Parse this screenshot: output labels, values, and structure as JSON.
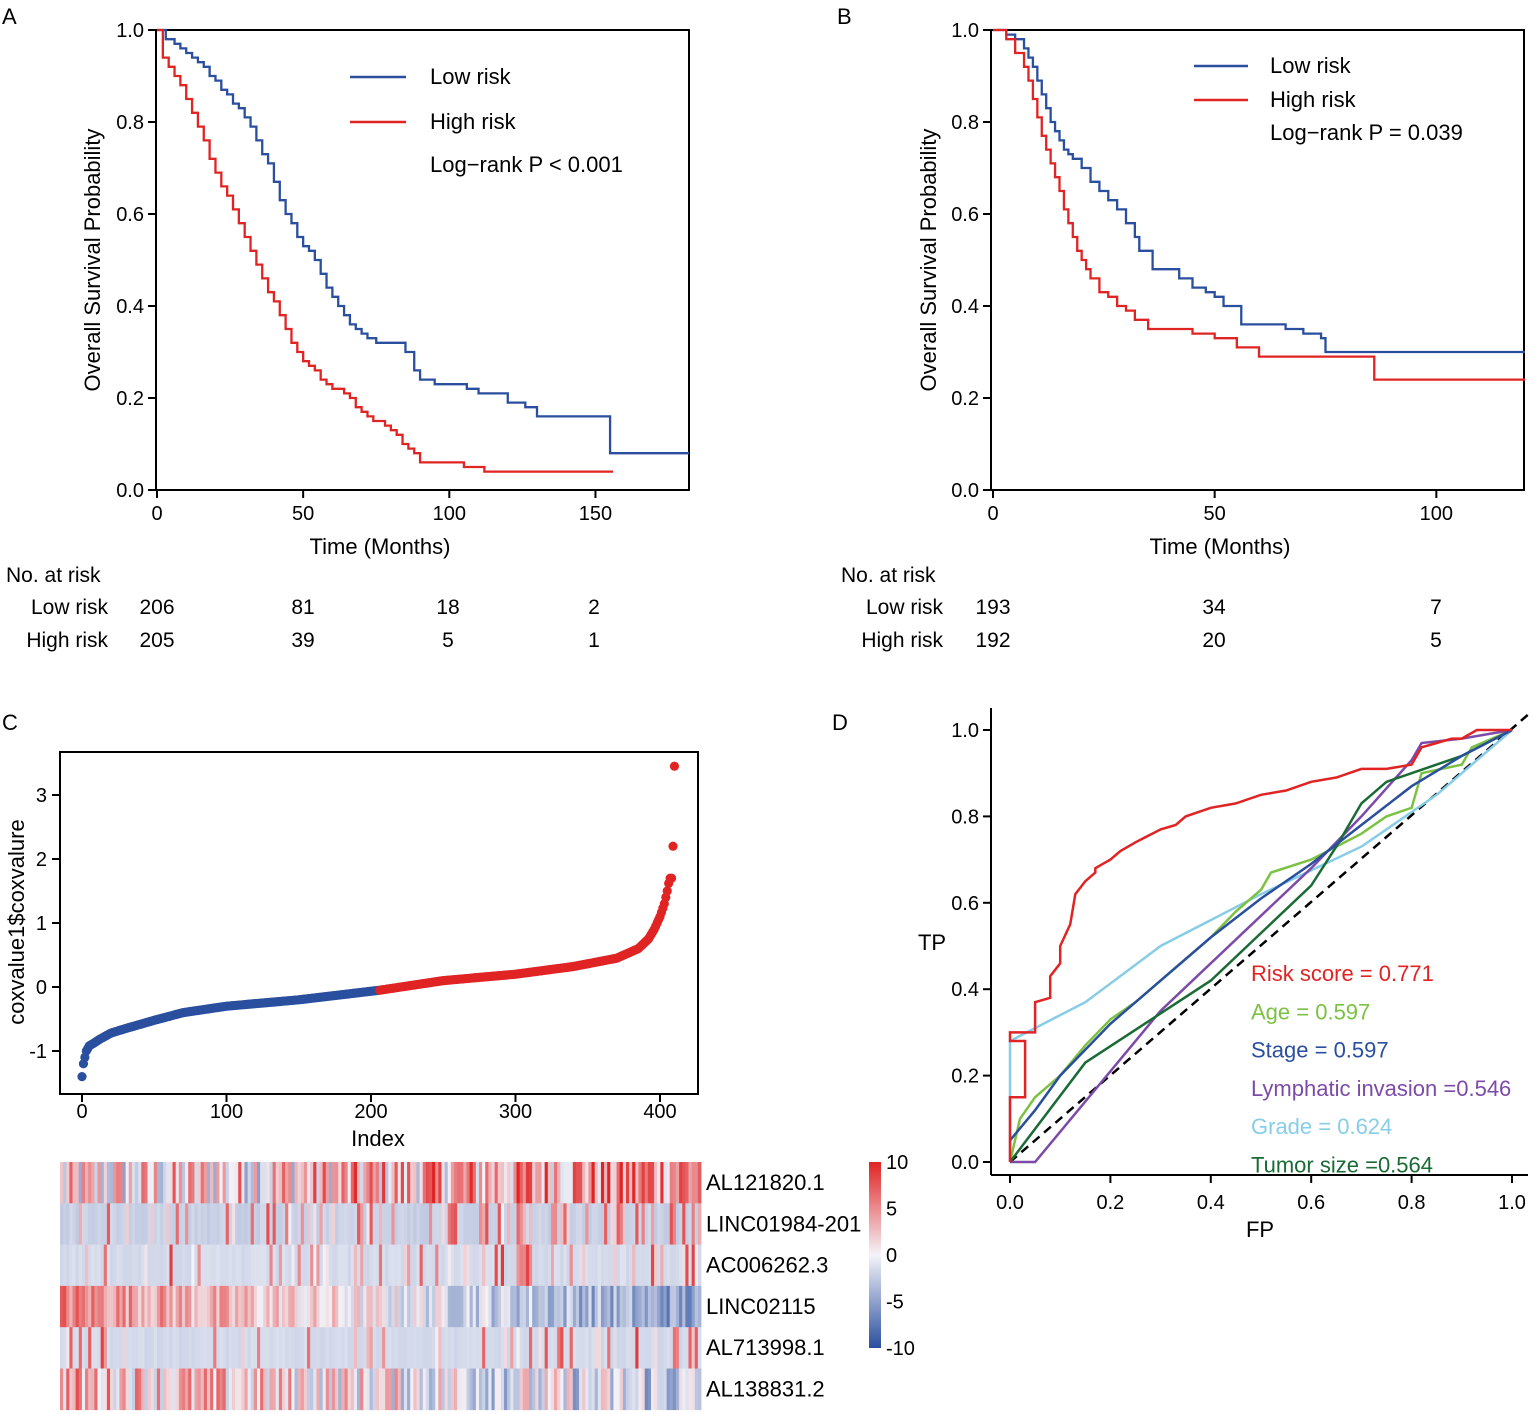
{
  "chart_data": [
    {
      "panel": "A",
      "type": "line",
      "xlabel": "Time (Months)",
      "ylabel": "Overall Survival Probability",
      "xlim": [
        0,
        182
      ],
      "ylim": [
        0,
        1
      ],
      "xticks": [
        "0",
        "50",
        "100",
        "150"
      ],
      "yticks": [
        "0.0",
        "0.2",
        "0.4",
        "0.6",
        "0.8",
        "1.0"
      ],
      "pvalue": "Log−rank P < 0.001",
      "series": [
        {
          "name": "Low risk",
          "color": "#2a4f9e",
          "x": [
            0,
            3,
            6,
            8,
            10,
            12,
            14,
            16,
            18,
            20,
            22,
            24,
            26,
            28,
            30,
            32,
            34,
            36,
            38,
            40,
            42,
            44,
            46,
            48,
            50,
            52,
            54,
            56,
            58,
            60,
            62,
            64,
            66,
            68,
            70,
            72,
            75,
            80,
            85,
            88,
            90,
            95,
            100,
            106,
            110,
            116,
            120,
            126,
            130,
            140,
            150,
            154,
            155,
            160,
            170,
            182
          ],
          "y": [
            1,
            0.98,
            0.97,
            0.96,
            0.95,
            0.94,
            0.93,
            0.92,
            0.9,
            0.89,
            0.87,
            0.86,
            0.84,
            0.83,
            0.81,
            0.79,
            0.76,
            0.73,
            0.71,
            0.67,
            0.63,
            0.6,
            0.58,
            0.55,
            0.53,
            0.52,
            0.5,
            0.47,
            0.44,
            0.42,
            0.4,
            0.38,
            0.36,
            0.35,
            0.34,
            0.33,
            0.32,
            0.32,
            0.3,
            0.26,
            0.24,
            0.23,
            0.23,
            0.22,
            0.21,
            0.21,
            0.19,
            0.18,
            0.16,
            0.16,
            0.16,
            0.16,
            0.08,
            0.08,
            0.08,
            0.08
          ]
        },
        {
          "name": "High risk",
          "color": "#e02424",
          "x": [
            0,
            2,
            4,
            6,
            8,
            10,
            12,
            14,
            16,
            18,
            20,
            22,
            24,
            26,
            28,
            30,
            32,
            34,
            36,
            38,
            40,
            42,
            44,
            46,
            48,
            50,
            52,
            54,
            56,
            58,
            60,
            62,
            64,
            66,
            68,
            70,
            72,
            74,
            76,
            78,
            80,
            82,
            84,
            86,
            88,
            90,
            95,
            100,
            105,
            110,
            112,
            120,
            140,
            156
          ],
          "y": [
            1,
            0.94,
            0.92,
            0.9,
            0.88,
            0.85,
            0.82,
            0.79,
            0.76,
            0.72,
            0.69,
            0.66,
            0.64,
            0.61,
            0.58,
            0.55,
            0.52,
            0.49,
            0.46,
            0.43,
            0.41,
            0.38,
            0.35,
            0.32,
            0.3,
            0.28,
            0.27,
            0.26,
            0.24,
            0.23,
            0.22,
            0.22,
            0.21,
            0.2,
            0.18,
            0.17,
            0.16,
            0.15,
            0.15,
            0.14,
            0.13,
            0.12,
            0.1,
            0.09,
            0.08,
            0.06,
            0.06,
            0.06,
            0.05,
            0.05,
            0.04,
            0.04,
            0.04,
            0.04
          ]
        }
      ],
      "risk_table": {
        "header": "No. at risk",
        "rows": [
          {
            "label": "Low risk",
            "values": [
              "206",
              "81",
              "18",
              "2"
            ]
          },
          {
            "label": "High risk",
            "values": [
              "205",
              "39",
              "5",
              "1"
            ]
          }
        ]
      }
    },
    {
      "panel": "B",
      "type": "line",
      "xlabel": "Time (Months)",
      "ylabel": "Overall Survival Probability",
      "xlim": [
        0,
        120
      ],
      "ylim": [
        0,
        1
      ],
      "xticks": [
        "0",
        "50",
        "100"
      ],
      "yticks": [
        "0.0",
        "0.2",
        "0.4",
        "0.6",
        "0.8",
        "1.0"
      ],
      "pvalue": "Log−rank P = 0.039",
      "series": [
        {
          "name": "Low risk",
          "color": "#2a4f9e",
          "x": [
            0,
            3,
            5,
            7,
            8,
            9,
            10,
            11,
            12,
            13,
            14,
            15,
            16,
            17,
            18,
            20,
            22,
            24,
            26,
            28,
            30,
            32,
            33,
            36,
            40,
            42,
            45,
            48,
            50,
            52,
            56,
            60,
            66,
            70,
            74,
            75,
            80,
            90,
            100,
            110,
            120
          ],
          "y": [
            1,
            0.99,
            0.98,
            0.96,
            0.94,
            0.92,
            0.89,
            0.86,
            0.83,
            0.8,
            0.78,
            0.76,
            0.74,
            0.73,
            0.72,
            0.7,
            0.67,
            0.65,
            0.63,
            0.61,
            0.58,
            0.55,
            0.52,
            0.48,
            0.48,
            0.46,
            0.44,
            0.43,
            0.42,
            0.4,
            0.36,
            0.36,
            0.35,
            0.34,
            0.33,
            0.3,
            0.3,
            0.3,
            0.3,
            0.3,
            0.3
          ]
        },
        {
          "name": "High risk",
          "color": "#e02424",
          "x": [
            0,
            3,
            5,
            7,
            8,
            9,
            10,
            11,
            12,
            13,
            14,
            15,
            16,
            17,
            18,
            19,
            20,
            21,
            22,
            24,
            26,
            28,
            30,
            32,
            35,
            40,
            45,
            50,
            55,
            60,
            70,
            80,
            85,
            86,
            90,
            100,
            110,
            120
          ],
          "y": [
            1,
            0.98,
            0.95,
            0.92,
            0.89,
            0.85,
            0.81,
            0.77,
            0.74,
            0.71,
            0.68,
            0.65,
            0.61,
            0.58,
            0.55,
            0.52,
            0.5,
            0.48,
            0.46,
            0.43,
            0.42,
            0.4,
            0.39,
            0.37,
            0.35,
            0.35,
            0.34,
            0.33,
            0.31,
            0.29,
            0.29,
            0.29,
            0.29,
            0.24,
            0.24,
            0.24,
            0.24,
            0.24
          ]
        }
      ],
      "risk_table": {
        "header": "No. at risk",
        "rows": [
          {
            "label": "Low risk",
            "values": [
              "193",
              "34",
              "7"
            ]
          },
          {
            "label": "High risk",
            "values": [
              "192",
              "20",
              "5"
            ]
          }
        ]
      }
    },
    {
      "panel": "C",
      "type": "scatter",
      "xlabel": "Index",
      "ylabel": "coxvalue1$coxvalure",
      "xlim": [
        -10,
        420
      ],
      "ylim": [
        -1.45,
        3.6
      ],
      "xticks": [
        "0",
        "100",
        "200",
        "300",
        "400"
      ],
      "yticks": [
        "-1",
        "0",
        "1",
        "2",
        "3"
      ],
      "n_points": 411,
      "split_index": 206,
      "low_color": "#2a4f9e",
      "high_color": "#e02424",
      "curve_index": [
        0,
        1,
        2,
        3,
        5,
        8,
        12,
        20,
        30,
        50,
        70,
        100,
        150,
        206,
        250,
        300,
        340,
        370,
        385,
        392,
        396,
        400,
        403,
        405,
        406,
        407,
        408,
        409,
        410
      ],
      "curve_value": [
        -1.4,
        -1.2,
        -1.1,
        -1.0,
        -0.92,
        -0.88,
        -0.82,
        -0.72,
        -0.65,
        -0.52,
        -0.4,
        -0.3,
        -0.2,
        -0.05,
        0.1,
        0.2,
        0.32,
        0.45,
        0.6,
        0.75,
        0.9,
        1.1,
        1.3,
        1.5,
        1.62,
        1.7,
        1.7,
        2.2,
        3.45
      ],
      "heatmap": {
        "genes": [
          "AL121820.1",
          "LINC01984-201",
          "AC006262.3",
          "LINC02115",
          "AL713998.1",
          "AL138831.2"
        ],
        "colorbar_ticks": [
          "10",
          "5",
          "0",
          "-5",
          "-10"
        ],
        "color_low": "#2a4f9e",
        "color_mid": "#f2f2f8",
        "color_high": "#e02424"
      }
    },
    {
      "panel": "D",
      "type": "line",
      "xlabel": "FP",
      "ylabel": "TP",
      "xlim": [
        0,
        1
      ],
      "ylim": [
        0,
        1
      ],
      "xticks": [
        "0.0",
        "0.2",
        "0.4",
        "0.6",
        "0.8",
        "1.0"
      ],
      "yticks": [
        "0.0",
        "0.2",
        "0.4",
        "0.6",
        "0.8",
        "1.0"
      ],
      "series": [
        {
          "name": "Risk score = 0.771",
          "color": "#e02424",
          "x": [
            0,
            0,
            0.03,
            0.03,
            0,
            0,
            0.05,
            0.05,
            0.08,
            0.08,
            0.1,
            0.1,
            0.12,
            0.13,
            0.15,
            0.17,
            0.17,
            0.2,
            0.22,
            0.25,
            0.3,
            0.33,
            0.35,
            0.4,
            0.45,
            0.5,
            0.55,
            0.6,
            0.65,
            0.7,
            0.75,
            0.8,
            0.82,
            0.85,
            0.88,
            0.9,
            0.93,
            0.95,
            1
          ],
          "y": [
            0,
            0.15,
            0.15,
            0.28,
            0.28,
            0.3,
            0.3,
            0.37,
            0.38,
            0.43,
            0.46,
            0.5,
            0.55,
            0.62,
            0.65,
            0.67,
            0.68,
            0.7,
            0.72,
            0.74,
            0.77,
            0.78,
            0.8,
            0.82,
            0.83,
            0.85,
            0.86,
            0.88,
            0.89,
            0.91,
            0.91,
            0.92,
            0.96,
            0.97,
            0.98,
            0.98,
            1,
            1,
            1
          ]
        },
        {
          "name": "Age = 0.597",
          "color": "#7cc242",
          "x": [
            0,
            0.02,
            0.05,
            0.1,
            0.15,
            0.2,
            0.25,
            0.3,
            0.35,
            0.4,
            0.45,
            0.5,
            0.52,
            0.6,
            0.65,
            0.7,
            0.75,
            0.8,
            0.82,
            0.9,
            0.92,
            1
          ],
          "y": [
            0,
            0.1,
            0.15,
            0.2,
            0.27,
            0.33,
            0.37,
            0.42,
            0.47,
            0.52,
            0.58,
            0.63,
            0.67,
            0.7,
            0.73,
            0.76,
            0.8,
            0.82,
            0.9,
            0.92,
            0.96,
            1
          ]
        },
        {
          "name": "Stage = 0.597",
          "color": "#2a4f9e",
          "x": [
            0,
            0.05,
            0.1,
            0.2,
            0.3,
            0.4,
            0.5,
            0.6,
            0.7,
            0.8,
            0.9,
            1
          ],
          "y": [
            0.05,
            0.12,
            0.2,
            0.32,
            0.42,
            0.52,
            0.61,
            0.69,
            0.78,
            0.87,
            0.94,
            1
          ]
        },
        {
          "name": "Lymphatic invasion =0.546",
          "color": "#7c4aa8",
          "x": [
            0,
            0.05,
            0.3,
            0.6,
            0.7,
            0.8,
            0.82,
            0.9,
            1
          ],
          "y": [
            0,
            0,
            0.35,
            0.68,
            0.8,
            0.93,
            0.97,
            0.98,
            1
          ]
        },
        {
          "name": "Grade = 0.624",
          "color": "#87cde8",
          "x": [
            0,
            0,
            0.15,
            0.3,
            0.5,
            0.7,
            0.85,
            0.9,
            1
          ],
          "y": [
            0,
            0.28,
            0.37,
            0.5,
            0.62,
            0.73,
            0.85,
            0.9,
            1
          ]
        },
        {
          "name": "Tumor size =0.564",
          "color": "#1a6b35",
          "x": [
            0,
            0.15,
            0.4,
            0.6,
            0.65,
            0.7,
            0.75,
            0.8,
            0.9,
            1
          ],
          "y": [
            0,
            0.23,
            0.42,
            0.64,
            0.73,
            0.83,
            0.88,
            0.9,
            0.94,
            1
          ]
        }
      ]
    }
  ],
  "panel_labels": [
    "A",
    "B",
    "C",
    "D"
  ]
}
